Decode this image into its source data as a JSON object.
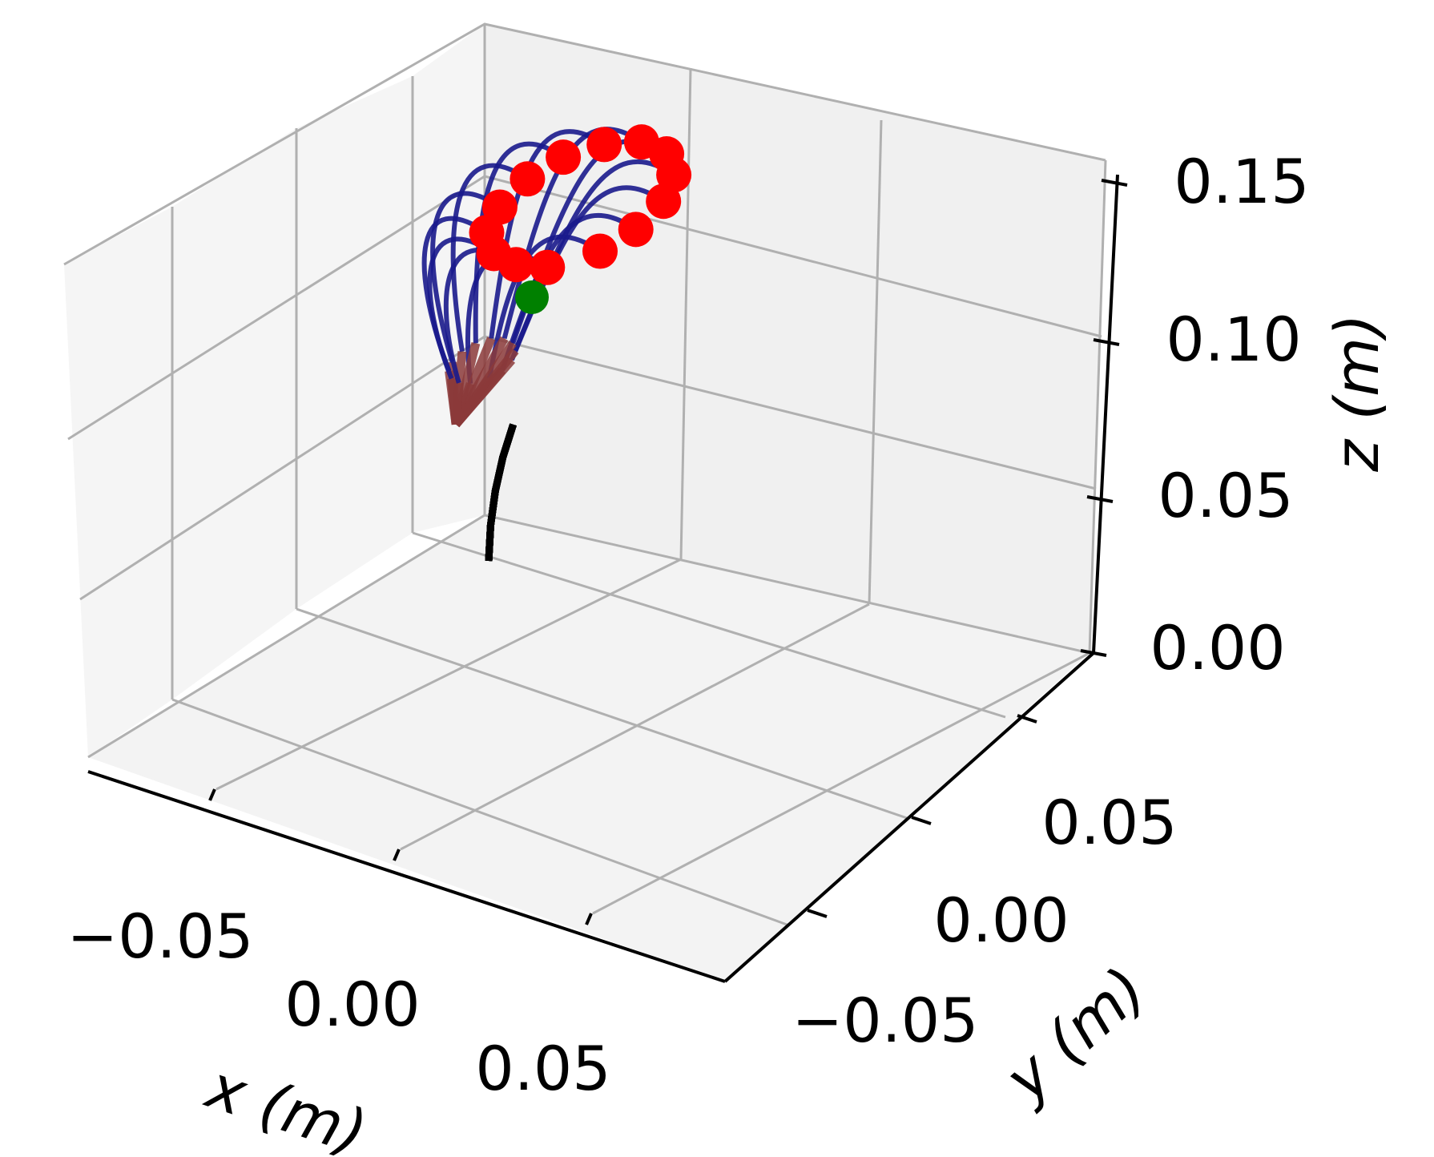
{
  "chart_data": {
    "type": "3d-line",
    "title": "",
    "xlabel": "x (m)",
    "ylabel": "y (m)",
    "zlabel": "z (m)",
    "x_ticks": [
      "−0.05",
      "0.00",
      "0.05"
    ],
    "y_ticks": [
      "−0.05",
      "0.00",
      "0.05"
    ],
    "z_ticks": [
      "0.00",
      "0.05",
      "0.10",
      "0.15"
    ],
    "xlim": [
      -0.1,
      0.1
    ],
    "ylim": [
      -0.1,
      0.1
    ],
    "zlim": [
      0.0,
      0.15
    ],
    "grid": true,
    "colors": {
      "base_segment": "#000000",
      "middle_segment": "#8b3a3a",
      "top_segment": "#1a1a8c",
      "tip_marker": "#ff0000",
      "target_marker": "#008000",
      "grid": "#b0b0b0",
      "pane": "#f2f2f2"
    },
    "series": [
      {
        "name": "",
        "segment": "base",
        "points": [
          [
            0.0,
            0.0,
            0.0
          ],
          [
            0.0,
            0.0,
            0.015
          ],
          [
            0.001,
            0.0,
            0.03
          ],
          [
            0.003,
            0.0,
            0.045
          ],
          [
            0.006,
            0.0,
            0.06
          ]
        ]
      },
      {
        "name": "",
        "segment": "middle",
        "points": [
          [
            0.006,
            0.0,
            0.06
          ],
          [
            0.01,
            0.0,
            0.075
          ],
          [
            0.014,
            0.0,
            0.09
          ]
        ]
      },
      {
        "name": "",
        "segment": "top",
        "points": [
          [
            0.014,
            0.0,
            0.09
          ],
          [
            0.017,
            0.0,
            0.105
          ],
          [
            0.02,
            0.0,
            0.12
          ],
          [
            0.025,
            0.0,
            0.13
          ]
        ]
      }
    ],
    "tip_points": [
      [
        0.015,
        -0.0,
        0.13
      ],
      [
        0.024,
        0.009,
        0.13
      ],
      [
        0.027,
        0.018,
        0.13
      ],
      [
        0.026,
        0.028,
        0.13
      ],
      [
        0.021,
        0.036,
        0.13
      ],
      [
        0.013,
        0.041,
        0.13
      ],
      [
        0.003,
        0.042,
        0.13
      ],
      [
        -0.006,
        0.038,
        0.13
      ],
      [
        -0.013,
        0.031,
        0.13
      ],
      [
        -0.016,
        0.022,
        0.13
      ],
      [
        -0.015,
        0.012,
        0.13
      ],
      [
        -0.011,
        0.004,
        0.13
      ],
      [
        -0.003,
        -0.001,
        0.13
      ],
      [
        0.006,
        -0.002,
        0.13
      ]
    ],
    "target_point": [
      0.0,
      0.01,
      0.1
    ]
  }
}
